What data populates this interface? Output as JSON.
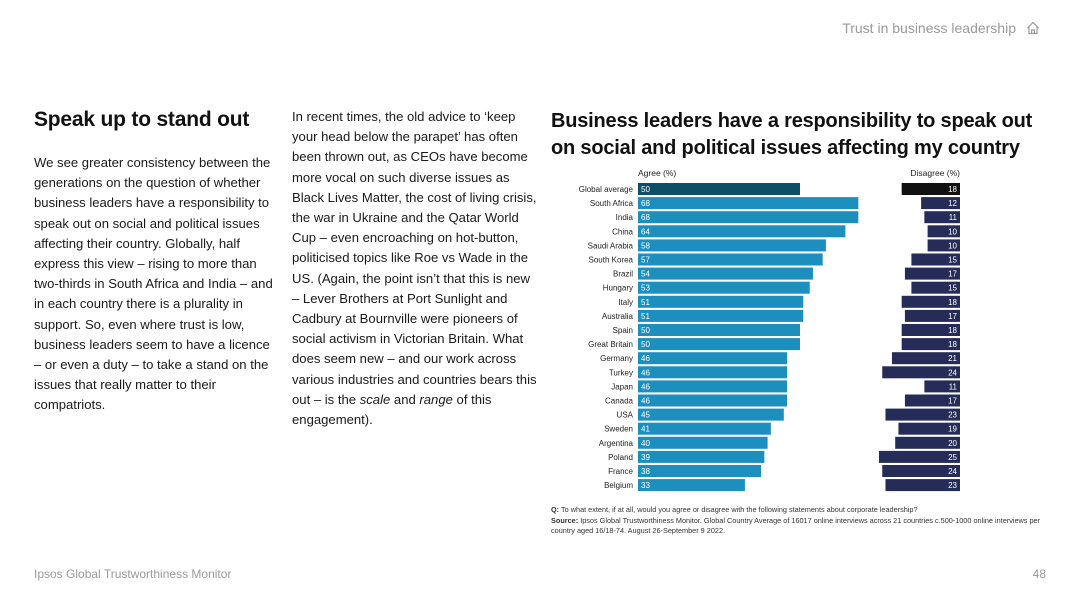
{
  "header": {
    "link_label": "Trust in business leadership",
    "icon": "home-icon"
  },
  "left": {
    "title": "Speak up to stand out",
    "body": "We see greater consistency between the generations on the question of whether business leaders have a responsibility to speak out on social and political issues affecting their country. Globally, half express this view – rising to more than two-thirds in South Africa and India – and in each country there is a plurality in support. So, even where trust is low, business leaders seem to have a licence – or even a duty – to take a stand on the issues that really matter to their compatriots."
  },
  "middle": {
    "body_start": "In recent times, the old advice to ‘keep your head below the parapet’ has often been thrown out, as CEOs have become more vocal on such diverse issues as Black Lives Matter, the cost of living crisis, the war in Ukraine and the Qatar World Cup – even encroaching on hot-button, politicised topics like Roe vs Wade in the US. (Again, the point isn’t that this is new – Lever Brothers at Port Sunlight and Cadbury at Bournville were pioneers of social activism in Victorian Britain. What does seem new – and our work across various industries and countries bears this out – is the ",
    "em1": "scale",
    "mid_and": " and ",
    "em2": "range",
    "body_end": " of this engagement)."
  },
  "chart_data": {
    "type": "bar",
    "title": "Business leaders have a responsibility to speak out on social and political issues affecting my country",
    "categories": [
      "Global average",
      "South Africa",
      "India",
      "China",
      "Saudi Arabia",
      "South Korea",
      "Brazil",
      "Hungary",
      "Italy",
      "Australia",
      "Spain",
      "Great Britain",
      "Germany",
      "Turkey",
      "Japan",
      "Canada",
      "USA",
      "Sweden",
      "Argentina",
      "Poland",
      "France",
      "Belgium"
    ],
    "series": [
      {
        "name": "Agree (%)",
        "values": [
          50,
          68,
          68,
          64,
          58,
          57,
          54,
          53,
          51,
          51,
          50,
          50,
          46,
          46,
          46,
          46,
          45,
          41,
          40,
          39,
          38,
          33
        ]
      },
      {
        "name": "Disagree (%)",
        "values": [
          18,
          12,
          11,
          10,
          10,
          15,
          17,
          15,
          18,
          17,
          18,
          18,
          21,
          24,
          11,
          17,
          23,
          19,
          20,
          25,
          24,
          23
        ]
      }
    ],
    "colors": {
      "agree": "#1c8fbe",
      "agree_highlight": "#0e4f68",
      "disagree": "#252c57",
      "disagree_highlight": "#111111"
    },
    "highlight_category": "Global average"
  },
  "notes": {
    "q_label": "Q:",
    "q_text": " To what extent, if at all, would you agree or disagree with the following statements about corporate leadership?",
    "source_label": "Source:",
    "source_text": " Ipsos Global Trustworthiness Monitor. Global Country Average of 16017 online interviews across 21 countries c.500-1000 online interviews per country aged 16/18-74. August 26-September 9 2022."
  },
  "footer": {
    "left": "Ipsos Global Trustworthiness Monitor",
    "page": "48"
  }
}
